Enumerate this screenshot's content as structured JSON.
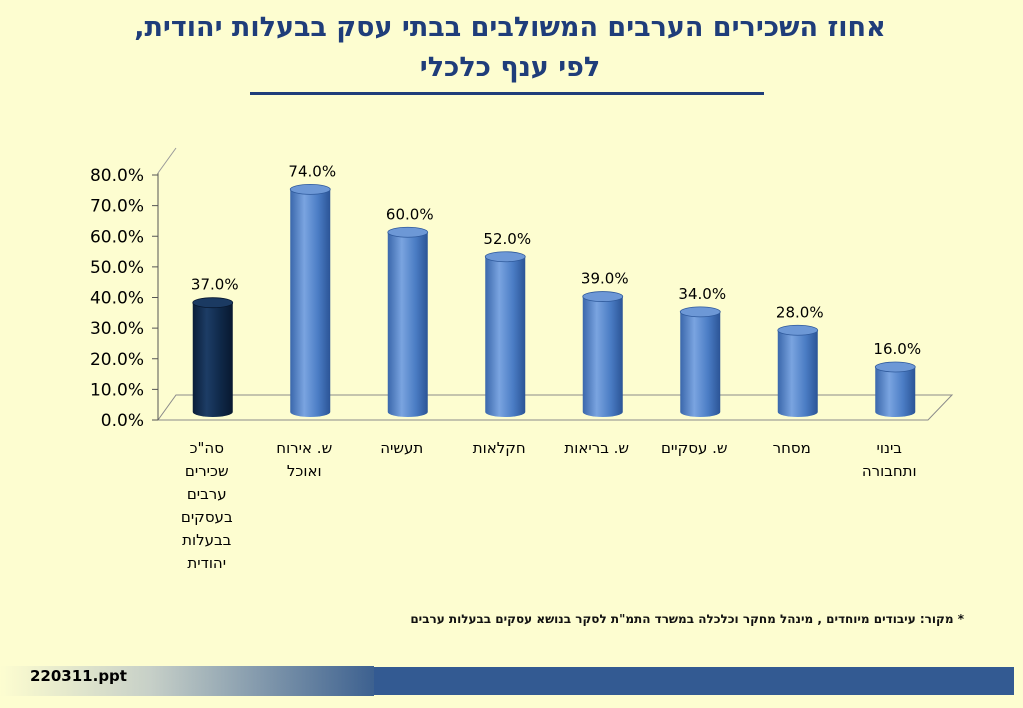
{
  "title": {
    "line1": "אחוז השכירים הערבים המשולבים בבתי עסק בבעלות יהודית,",
    "line2": "לפי ענף כלכלי"
  },
  "source": "* מקור: עיבודים מיוחדים , מינהל מחקר וכלכלה במשרד התמ\"ת לסקר בנושא עסקים בבעלות ערבים",
  "footer": {
    "label": "220311.ppt"
  },
  "colors": {
    "background": "#fdfdd0",
    "title": "#1f3d7a",
    "highlight_bar": "#0e2644",
    "bar": "#4f7fc4",
    "footer_bar": "#335a92"
  },
  "chart_data": {
    "type": "bar",
    "categories": [
      "סה\"כ שכירים ערבים בעסקים בבעלות יהודית",
      "ש. אירוח ואוכל",
      "תעשיה",
      "חקלאות",
      "ש. בריאות",
      "ש. עסקיים",
      "מסחר",
      "בינוי ותחבורה"
    ],
    "category_lines": [
      [
        "סה\"כ",
        "שכירים",
        "ערבים",
        "בעסקים",
        "בבעלות",
        "יהודית"
      ],
      [
        "ש. אירוח",
        "ואוכל"
      ],
      [
        "תעשיה"
      ],
      [
        "חקלאות"
      ],
      [
        "ש. בריאות"
      ],
      [
        "ש. עסקיים"
      ],
      [
        "מסחר"
      ],
      [
        "בינוי",
        "ותחבורה"
      ]
    ],
    "values": [
      37.0,
      74.0,
      60.0,
      52.0,
      39.0,
      34.0,
      28.0,
      16.0
    ],
    "data_labels": [
      "37.0%",
      "74.0%",
      "60.0%",
      "52.0%",
      "39.0%",
      "34.0%",
      "28.0%",
      "16.0%"
    ],
    "highlight_index": 0,
    "y_ticks": [
      0,
      10,
      20,
      30,
      40,
      50,
      60,
      70,
      80
    ],
    "y_tick_labels": [
      "0.0%",
      "10.0%",
      "20.0%",
      "30.0%",
      "40.0%",
      "50.0%",
      "60.0%",
      "70.0%",
      "80.0%"
    ],
    "ylim": [
      0,
      80
    ],
    "grid": false,
    "style": "3d-cylinder"
  }
}
